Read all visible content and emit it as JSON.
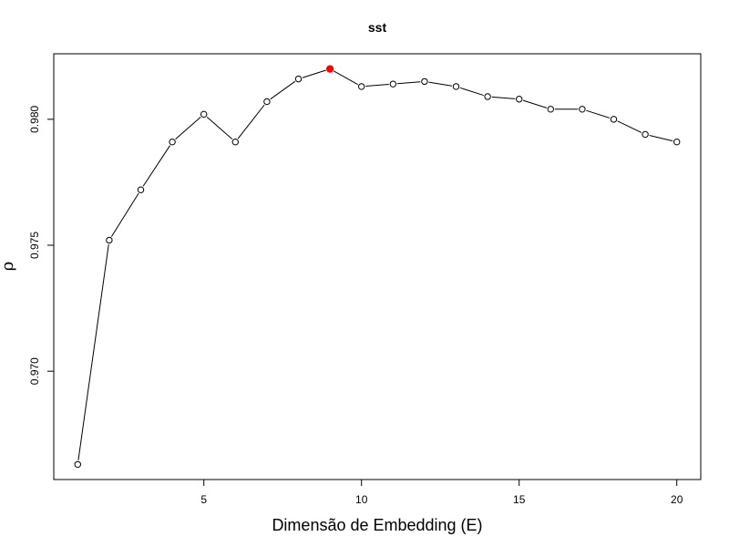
{
  "chart_data": {
    "type": "line",
    "title": "sst",
    "xlabel": "Dimensão de Embedding (E)",
    "ylabel": "ρ",
    "xlim": [
      0.24,
      20.76
    ],
    "ylim": [
      0.9657,
      0.9826
    ],
    "xticks": [
      5,
      10,
      15,
      20
    ],
    "xtick_labels": [
      "5",
      "10",
      "15",
      "20"
    ],
    "yticks": [
      0.97,
      0.975,
      0.98
    ],
    "ytick_labels": [
      "0.970",
      "0.975",
      "0.980"
    ],
    "grid": false,
    "x": [
      1,
      2,
      3,
      4,
      5,
      6,
      7,
      8,
      9,
      10,
      11,
      12,
      13,
      14,
      15,
      16,
      17,
      18,
      19,
      20
    ],
    "values": [
      0.9663,
      0.9752,
      0.9772,
      0.9791,
      0.9802,
      0.9791,
      0.9807,
      0.9816,
      0.982,
      0.9813,
      0.9814,
      0.9815,
      0.9813,
      0.9809,
      0.9808,
      0.9804,
      0.9804,
      0.98,
      0.9794,
      0.9791
    ],
    "highlight": {
      "x": 9,
      "y": 0.982,
      "color": "#ff0000"
    },
    "line_color": "#000000",
    "marker_fill": "#ffffff"
  }
}
